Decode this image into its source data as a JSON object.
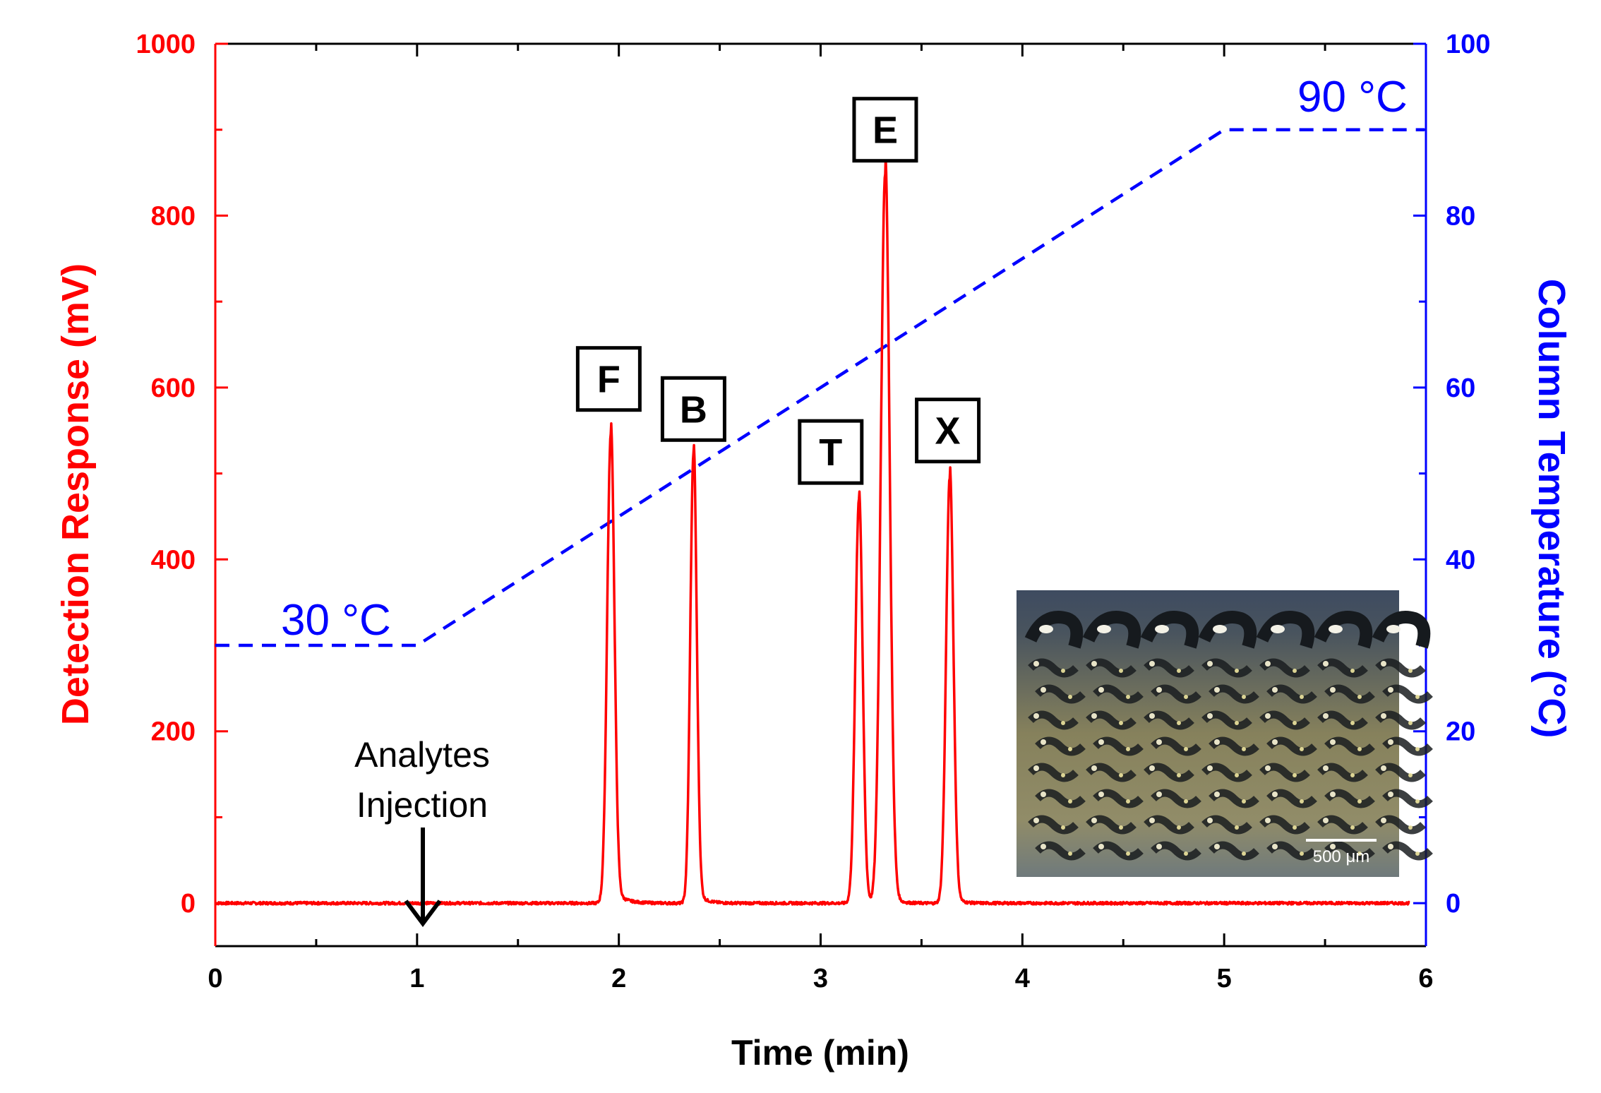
{
  "chart_data": {
    "type": "line",
    "title": "",
    "xlabel": "Time (min)",
    "ylabel_left": "Detection Response (mV)",
    "ylabel_right": "Column Temperature (°C)",
    "xlim": [
      0,
      6
    ],
    "ylim_left": [
      -50,
      1000
    ],
    "ylim_right": [
      -5,
      100
    ],
    "x_ticks": [
      0,
      1,
      2,
      3,
      4,
      5,
      6
    ],
    "x_tick_labels": [
      "0",
      "1",
      "2",
      "3",
      "4",
      "5",
      "6"
    ],
    "y_left_ticks": [
      0,
      200,
      400,
      600,
      800,
      1000
    ],
    "y_left_tick_labels": [
      "0",
      "200",
      "400",
      "600",
      "800",
      "1000"
    ],
    "y_right_ticks": [
      0,
      20,
      40,
      60,
      80,
      100
    ],
    "y_right_tick_labels": [
      "0",
      "20",
      "40",
      "60",
      "80",
      "100"
    ],
    "grid": false,
    "colors": {
      "response": "#ff0000",
      "temperature": "#0000ff",
      "axis_x": "#000000"
    },
    "series": [
      {
        "name": "Detection Response",
        "axis": "left",
        "style": "solid",
        "baseline": 0,
        "peaks": [
          {
            "label": "F",
            "time": 1.96,
            "height": 545,
            "width": 0.018,
            "tail": 0.05
          },
          {
            "label": "B",
            "time": 2.37,
            "height": 523,
            "width": 0.016,
            "tail": 0.04
          },
          {
            "label": "T",
            "time": 3.19,
            "height": 470,
            "width": 0.018,
            "tail": 0.02
          },
          {
            "label": "E",
            "time": 3.32,
            "height": 848,
            "width": 0.022,
            "tail": 0.03
          },
          {
            "label": "X",
            "time": 3.64,
            "height": 495,
            "width": 0.018,
            "tail": 0.03
          }
        ]
      },
      {
        "name": "Column Temperature",
        "axis": "right",
        "style": "dashed",
        "x": [
          0,
          1,
          5,
          6
        ],
        "y": [
          30,
          30,
          90,
          90
        ]
      }
    ],
    "annotations": {
      "temp_start": "30 °C",
      "temp_end": "90 °C",
      "injection_line1": "Analytes",
      "injection_line2": "Injection",
      "injection_time": 1
    },
    "peak_labels": [
      {
        "text": "F",
        "time": 1.95,
        "value": 610
      },
      {
        "text": "B",
        "time": 2.37,
        "value": 575
      },
      {
        "text": "T",
        "time": 3.05,
        "value": 525
      },
      {
        "text": "E",
        "time": 3.32,
        "value": 900
      },
      {
        "text": "X",
        "time": 3.63,
        "value": 550
      }
    ]
  },
  "inset": {
    "name": "microscope image of micropillar column",
    "scale_bar": "500 μm"
  }
}
